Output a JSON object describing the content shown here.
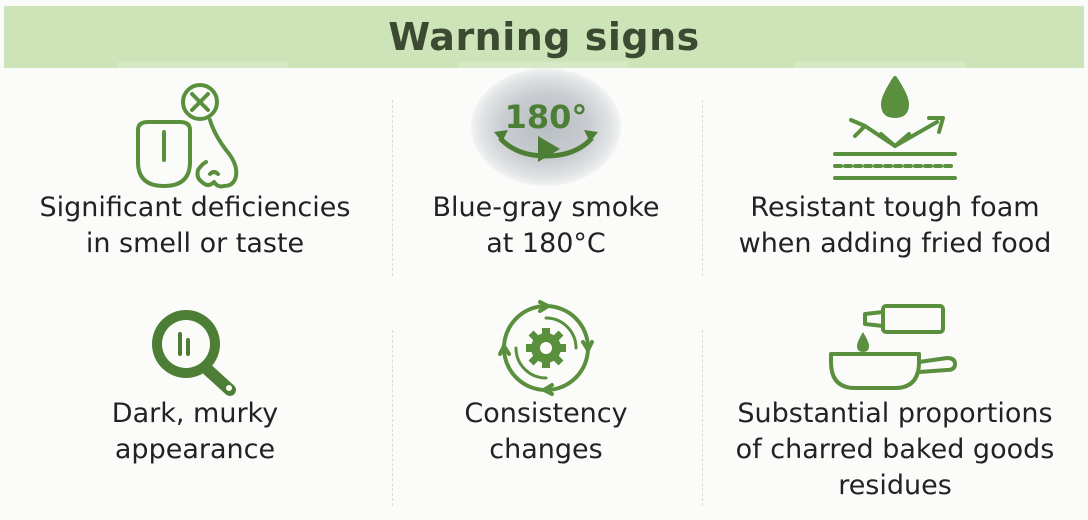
{
  "header": {
    "title": "Warning signs"
  },
  "items": [
    {
      "icon": "tongue-nose-icon",
      "line1": "Significant deficiencies",
      "line2": "in smell or taste",
      "line3": ""
    },
    {
      "icon": "smoke-180-icon",
      "line1": "Blue-gray smoke",
      "line2": "at 180°C",
      "line3": "",
      "icon_text": "180°"
    },
    {
      "icon": "water-drop-repel-icon",
      "line1": "Resistant tough foam",
      "line2": "when adding fried food",
      "line3": ""
    },
    {
      "icon": "dark-pan-icon",
      "line1": "Dark, murky",
      "line2": "appearance",
      "line3": ""
    },
    {
      "icon": "cycle-gear-icon",
      "line1": "Consistency",
      "line2": "changes",
      "line3": ""
    },
    {
      "icon": "pan-oil-bottle-icon",
      "line1": "Substantial proportions",
      "line2": "of charred baked goods",
      "line3": "residues"
    }
  ],
  "colors": {
    "accent": "#5a8f3e",
    "header_bg": "#cde3b8",
    "title": "#3b4a30"
  }
}
